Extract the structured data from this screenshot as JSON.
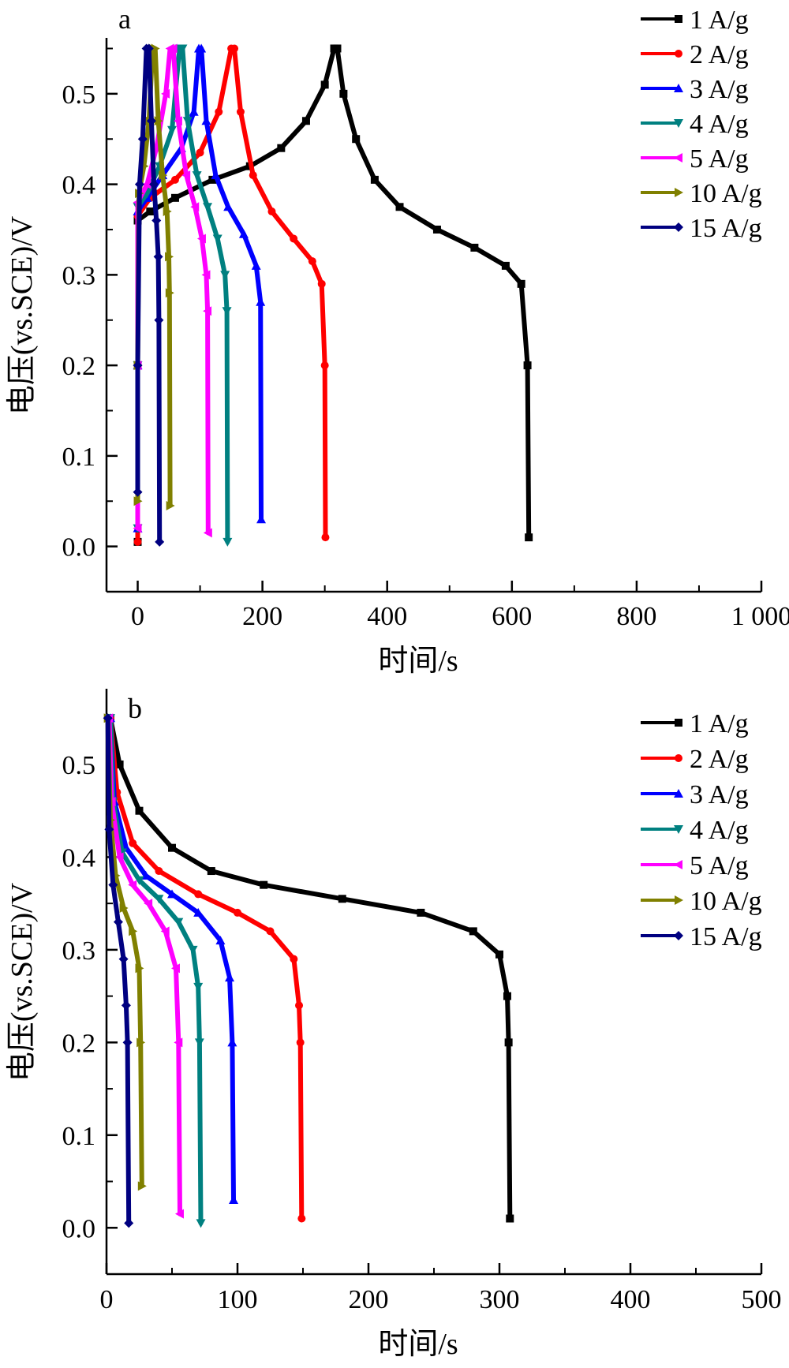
{
  "chart_data": [
    {
      "panel": "a",
      "type": "line",
      "xlabel": "时间/s",
      "ylabel": "电压(vs.SCE)/V",
      "xlim": [
        -50,
        1000
      ],
      "ylim": [
        -0.05,
        0.56
      ],
      "xticks": [
        0,
        200,
        400,
        600,
        800,
        1000
      ],
      "xtick_labels": [
        "0",
        "200",
        "400",
        "600",
        "800",
        "1 000"
      ],
      "yticks": [
        0.0,
        0.1,
        0.2,
        0.3,
        0.4,
        0.5
      ],
      "ytick_labels": [
        "0.0",
        "0.1",
        "0.2",
        "0.3",
        "0.4",
        "0.5"
      ],
      "grid": false,
      "legend_position": "top-right",
      "series": [
        {
          "name": "1 A/g",
          "color": "#000000",
          "marker": "square",
          "points": [
            [
              0,
              0.005
            ],
            [
              0,
              0.2
            ],
            [
              0,
              0.36
            ],
            [
              20,
              0.37
            ],
            [
              60,
              0.385
            ],
            [
              120,
              0.405
            ],
            [
              180,
              0.42
            ],
            [
              230,
              0.44
            ],
            [
              270,
              0.47
            ],
            [
              300,
              0.51
            ],
            [
              315,
              0.55
            ],
            [
              320,
              0.55
            ],
            [
              330,
              0.5
            ],
            [
              350,
              0.45
            ],
            [
              380,
              0.405
            ],
            [
              420,
              0.375
            ],
            [
              480,
              0.35
            ],
            [
              540,
              0.33
            ],
            [
              590,
              0.31
            ],
            [
              615,
              0.29
            ],
            [
              625,
              0.2
            ],
            [
              627,
              0.01
            ]
          ]
        },
        {
          "name": "2 A/g",
          "color": "#ff0000",
          "marker": "circle",
          "points": [
            [
              0,
              0.005
            ],
            [
              0,
              0.2
            ],
            [
              0,
              0.365
            ],
            [
              20,
              0.385
            ],
            [
              60,
              0.405
            ],
            [
              100,
              0.435
            ],
            [
              130,
              0.48
            ],
            [
              150,
              0.55
            ],
            [
              155,
              0.55
            ],
            [
              165,
              0.48
            ],
            [
              185,
              0.41
            ],
            [
              215,
              0.37
            ],
            [
              250,
              0.34
            ],
            [
              280,
              0.315
            ],
            [
              295,
              0.29
            ],
            [
              300,
              0.2
            ],
            [
              301,
              0.01
            ]
          ]
        },
        {
          "name": "3 A/g",
          "color": "#0000ff",
          "marker": "triangle-up",
          "points": [
            [
              0,
              0.02
            ],
            [
              0,
              0.2
            ],
            [
              0,
              0.37
            ],
            [
              15,
              0.385
            ],
            [
              40,
              0.41
            ],
            [
              70,
              0.44
            ],
            [
              90,
              0.48
            ],
            [
              98,
              0.55
            ],
            [
              102,
              0.55
            ],
            [
              110,
              0.47
            ],
            [
              125,
              0.41
            ],
            [
              145,
              0.375
            ],
            [
              170,
              0.345
            ],
            [
              190,
              0.31
            ],
            [
              197,
              0.27
            ],
            [
              198,
              0.03
            ]
          ]
        },
        {
          "name": "4 A/g",
          "color": "#008080",
          "marker": "triangle-down",
          "points": [
            [
              0,
              0.02
            ],
            [
              0,
              0.2
            ],
            [
              0,
              0.375
            ],
            [
              15,
              0.39
            ],
            [
              35,
              0.42
            ],
            [
              55,
              0.46
            ],
            [
              67,
              0.55
            ],
            [
              72,
              0.55
            ],
            [
              80,
              0.47
            ],
            [
              95,
              0.41
            ],
            [
              112,
              0.375
            ],
            [
              128,
              0.34
            ],
            [
              140,
              0.3
            ],
            [
              143,
              0.26
            ],
            [
              144,
              0.005
            ]
          ]
        },
        {
          "name": "5 A/g",
          "color": "#ff00ff",
          "marker": "triangle-left",
          "points": [
            [
              0,
              0.02
            ],
            [
              0,
              0.2
            ],
            [
              0,
              0.38
            ],
            [
              15,
              0.4
            ],
            [
              30,
              0.44
            ],
            [
              45,
              0.5
            ],
            [
              52,
              0.55
            ],
            [
              57,
              0.55
            ],
            [
              65,
              0.47
            ],
            [
              78,
              0.41
            ],
            [
              92,
              0.375
            ],
            [
              103,
              0.34
            ],
            [
              110,
              0.3
            ],
            [
              112,
              0.26
            ],
            [
              113,
              0.015
            ]
          ]
        },
        {
          "name": "10 A/g",
          "color": "#808000",
          "marker": "triangle-right",
          "points": [
            [
              0,
              0.05
            ],
            [
              0,
              0.2
            ],
            [
              2,
              0.39
            ],
            [
              10,
              0.42
            ],
            [
              18,
              0.47
            ],
            [
              24,
              0.55
            ],
            [
              28,
              0.55
            ],
            [
              33,
              0.47
            ],
            [
              40,
              0.41
            ],
            [
              47,
              0.37
            ],
            [
              50,
              0.32
            ],
            [
              51,
              0.28
            ],
            [
              52,
              0.045
            ]
          ]
        },
        {
          "name": "15 A/g",
          "color": "#000080",
          "marker": "diamond",
          "points": [
            [
              0,
              0.06
            ],
            [
              0,
              0.2
            ],
            [
              3,
              0.4
            ],
            [
              8,
              0.45
            ],
            [
              14,
              0.55
            ],
            [
              18,
              0.55
            ],
            [
              22,
              0.47
            ],
            [
              26,
              0.4
            ],
            [
              30,
              0.36
            ],
            [
              33,
              0.32
            ],
            [
              34,
              0.25
            ],
            [
              35,
              0.005
            ]
          ]
        }
      ]
    },
    {
      "panel": "b",
      "type": "line",
      "xlabel": "时间/s",
      "ylabel": "电压(vs.SCE)/V",
      "xlim": [
        0,
        500
      ],
      "ylim": [
        -0.05,
        0.58
      ],
      "xticks": [
        0,
        100,
        200,
        300,
        400,
        500
      ],
      "xtick_labels": [
        "0",
        "100",
        "200",
        "300",
        "400",
        "500"
      ],
      "yticks": [
        0.0,
        0.1,
        0.2,
        0.3,
        0.4,
        0.5
      ],
      "ytick_labels": [
        "0.0",
        "0.1",
        "0.2",
        "0.3",
        "0.4",
        "0.5"
      ],
      "grid": false,
      "legend_position": "top-right",
      "series": [
        {
          "name": "1 A/g",
          "color": "#000000",
          "marker": "square",
          "points": [
            [
              3,
              0.55
            ],
            [
              10,
              0.5
            ],
            [
              25,
              0.45
            ],
            [
              50,
              0.41
            ],
            [
              80,
              0.385
            ],
            [
              120,
              0.37
            ],
            [
              180,
              0.355
            ],
            [
              240,
              0.34
            ],
            [
              280,
              0.32
            ],
            [
              300,
              0.295
            ],
            [
              306,
              0.25
            ],
            [
              307,
              0.2
            ],
            [
              308,
              0.01
            ]
          ]
        },
        {
          "name": "2 A/g",
          "color": "#ff0000",
          "marker": "circle",
          "points": [
            [
              3,
              0.55
            ],
            [
              8,
              0.47
            ],
            [
              20,
              0.415
            ],
            [
              40,
              0.385
            ],
            [
              70,
              0.36
            ],
            [
              100,
              0.34
            ],
            [
              125,
              0.32
            ],
            [
              143,
              0.29
            ],
            [
              147,
              0.24
            ],
            [
              148,
              0.2
            ],
            [
              149,
              0.01
            ]
          ]
        },
        {
          "name": "3 A/g",
          "color": "#0000ff",
          "marker": "triangle-up",
          "points": [
            [
              3,
              0.55
            ],
            [
              6,
              0.46
            ],
            [
              15,
              0.41
            ],
            [
              30,
              0.38
            ],
            [
              50,
              0.36
            ],
            [
              70,
              0.34
            ],
            [
              87,
              0.31
            ],
            [
              94,
              0.27
            ],
            [
              96,
              0.2
            ],
            [
              97,
              0.03
            ]
          ]
        },
        {
          "name": "4 A/g",
          "color": "#008080",
          "marker": "triangle-down",
          "points": [
            [
              3,
              0.55
            ],
            [
              5,
              0.46
            ],
            [
              12,
              0.405
            ],
            [
              25,
              0.375
            ],
            [
              40,
              0.355
            ],
            [
              55,
              0.33
            ],
            [
              66,
              0.3
            ],
            [
              70,
              0.26
            ],
            [
              71,
              0.2
            ],
            [
              72,
              0.005
            ]
          ]
        },
        {
          "name": "5 A/g",
          "color": "#ff00ff",
          "marker": "triangle-left",
          "points": [
            [
              2,
              0.55
            ],
            [
              4,
              0.46
            ],
            [
              10,
              0.4
            ],
            [
              20,
              0.37
            ],
            [
              32,
              0.35
            ],
            [
              45,
              0.32
            ],
            [
              53,
              0.28
            ],
            [
              55,
              0.2
            ],
            [
              56,
              0.015
            ]
          ]
        },
        {
          "name": "10 A/g",
          "color": "#808000",
          "marker": "triangle-right",
          "points": [
            [
              1,
              0.55
            ],
            [
              3,
              0.44
            ],
            [
              7,
              0.38
            ],
            [
              13,
              0.345
            ],
            [
              20,
              0.32
            ],
            [
              25,
              0.28
            ],
            [
              26,
              0.2
            ],
            [
              27,
              0.045
            ]
          ]
        },
        {
          "name": "15 A/g",
          "color": "#000080",
          "marker": "diamond",
          "points": [
            [
              1,
              0.55
            ],
            [
              2,
              0.43
            ],
            [
              5,
              0.37
            ],
            [
              9,
              0.33
            ],
            [
              13,
              0.29
            ],
            [
              15,
              0.24
            ],
            [
              16,
              0.2
            ],
            [
              17,
              0.005
            ]
          ]
        }
      ]
    }
  ]
}
